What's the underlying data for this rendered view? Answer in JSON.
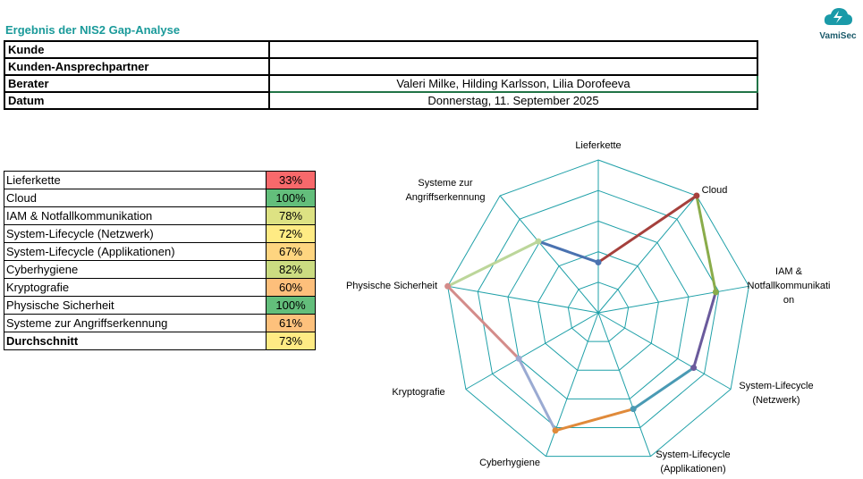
{
  "title": "Ergebnis der NIS2 Gap-Analyse",
  "logo": {
    "text": "VamiSec",
    "color": "#1a9aa8"
  },
  "info": [
    {
      "label": "Kunde",
      "value": ""
    },
    {
      "label": "Kunden-Ansprechpartner",
      "value": ""
    },
    {
      "label": "Berater",
      "value": "Valeri Milke, Hilding Karlsson, Lilia Dorofeeva"
    },
    {
      "label": "Datum",
      "value": "Donnerstag, 11. September 2025"
    }
  ],
  "scores": [
    {
      "label": "Lieferkette",
      "value": "33%",
      "color": "#f8696b"
    },
    {
      "label": "Cloud",
      "value": "100%",
      "color": "#63be7b"
    },
    {
      "label": "IAM & Notfallkommunikation",
      "value": "78%",
      "color": "#dde283"
    },
    {
      "label": "System-Lifecycle (Netzwerk)",
      "value": "72%",
      "color": "#ffeb84"
    },
    {
      "label": "System-Lifecycle (Applikationen)",
      "value": "67%",
      "color": "#fed580"
    },
    {
      "label": "Cyberhygiene",
      "value": "82%",
      "color": "#cbdc81"
    },
    {
      "label": "Kryptografie",
      "value": "60%",
      "color": "#fdbf7b"
    },
    {
      "label": "Physische Sicherheit",
      "value": "100%",
      "color": "#63be7b"
    },
    {
      "label": "Systeme zur Angriffserkennung",
      "value": "61%",
      "color": "#fdc17c"
    }
  ],
  "average": {
    "label": "Durchschnitt",
    "value": "73%",
    "color": "#ffeb84"
  },
  "chart_data": {
    "type": "radar",
    "categories": [
      "Lieferkette",
      "Cloud",
      "IAM & Notfallkommunikation",
      "System-Lifecycle (Netzwerk)",
      "System-Lifecycle (Applikationen)",
      "Cyberhygiene",
      "Kryptografie",
      "Physische Sicherheit",
      "Systeme zur Angriffserkennung"
    ],
    "axis_labels": [
      "Lieferkette",
      "Cloud",
      "IAM & Notfallkommunikati on",
      "System-Lifecycle (Netzwerk)",
      "System-Lifecycle (Applikationen)",
      "Cyberhygiene",
      "Kryptografie",
      "Physische Sicherheit",
      "Systeme zur Angriffserkennung"
    ],
    "values": [
      0.33,
      1.0,
      0.78,
      0.72,
      0.67,
      0.82,
      0.6,
      1.0,
      0.61
    ],
    "range": [
      0,
      1
    ],
    "rings": 5,
    "grid_color": "#1fa0a8",
    "segment_colors": [
      "#a5403c",
      "#8aac4a",
      "#6a5a9c",
      "#4a9ab4",
      "#e08a3a",
      "#9aaad2",
      "#d48c8a",
      "#bcd69a",
      "#4a72b0"
    ]
  }
}
